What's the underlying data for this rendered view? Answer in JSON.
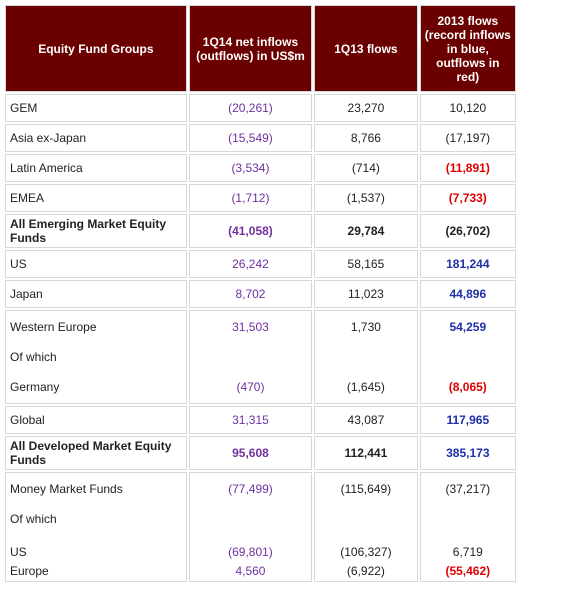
{
  "headers": {
    "groups": "Equity Fund Groups",
    "net": "1Q14 net inflows (outflows) in US$m",
    "q13": "1Q13 flows",
    "y2013": "2013 flows (record inflows in blue, outflows in red)"
  },
  "rows": [
    {
      "label": "GEM",
      "net": "(20,261)",
      "q13": "23,270",
      "y2013": "10,120"
    },
    {
      "label": "Asia ex-Japan",
      "net": "(15,549)",
      "q13": "8,766",
      "y2013": "(17,197)"
    },
    {
      "label": "Latin America",
      "net": "(3,534)",
      "q13": "(714)",
      "y2013": "(11,891)"
    },
    {
      "label": "EMEA",
      "net": "(1,712)",
      "q13": "(1,537)",
      "y2013": "(7,733)"
    },
    {
      "label": "All Emerging Market Equity Funds",
      "net": "(41,058)",
      "q13": "29,784",
      "y2013": "(26,702)"
    },
    {
      "label": "US",
      "net": "26,242",
      "q13": "58,165",
      "y2013": "181,244"
    },
    {
      "label": "Japan",
      "net": "8,702",
      "q13": "11,023",
      "y2013": "44,896"
    },
    {
      "label": "Western Europe",
      "net": "31,503",
      "q13": "1,730",
      "y2013": "54,259"
    },
    {
      "label": "Of which"
    },
    {
      "label": "Germany",
      "net": "(470)",
      "q13": "(1,645)",
      "y2013": "(8,065)"
    },
    {
      "label": "Global",
      "net": "31,315",
      "q13": "43,087",
      "y2013": "117,965"
    },
    {
      "label": "All Developed Market Equity Funds",
      "net": "95,608",
      "q13": "112,441",
      "y2013": "385,173"
    },
    {
      "label": "Money Market Funds",
      "net": "(77,499)",
      "q13": "(115,649)",
      "y2013": "(37,217)"
    },
    {
      "label": "Of which"
    },
    {
      "label": "US",
      "net": "(69,801)",
      "q13": "(106,327)",
      "y2013": "6,719"
    },
    {
      "label": "Europe",
      "net": "4,560",
      "q13": "(6,922)",
      "y2013": "(55,462)"
    }
  ],
  "colors": {
    "header_bg": "#6b0000",
    "net_text": "#7030a0",
    "record_inflow": "#1f2fa8",
    "record_outflow": "#e00000"
  }
}
